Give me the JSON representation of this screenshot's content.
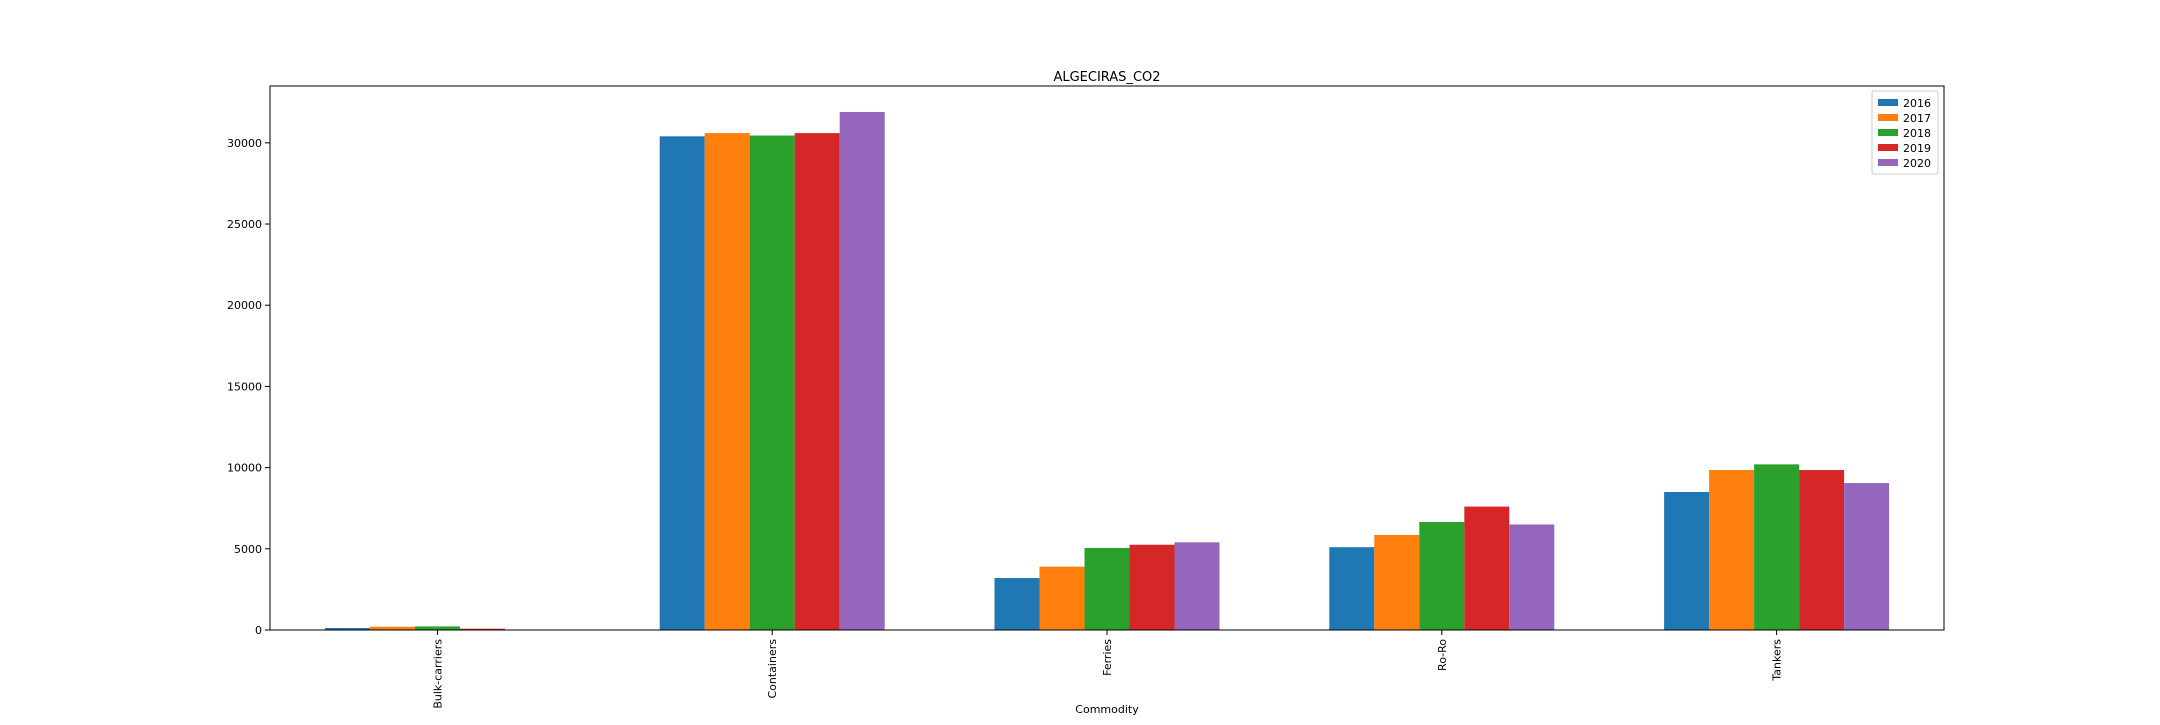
{
  "chart_data": {
    "type": "bar",
    "title": "ALGECIRAS_CO2",
    "xlabel": "Commodity",
    "ylabel": "",
    "categories": [
      "Bulk-carriers",
      "Containers",
      "Ferries",
      "Ro-Ro",
      "Tankers"
    ],
    "series": [
      {
        "name": "2016",
        "color": "#1f77b4",
        "values": [
          120,
          30400,
          3200,
          5100,
          8500
        ]
      },
      {
        "name": "2017",
        "color": "#ff7f0e",
        "values": [
          200,
          30600,
          3900,
          5850,
          9850
        ]
      },
      {
        "name": "2018",
        "color": "#2ca02c",
        "values": [
          220,
          30450,
          5050,
          6650,
          10200
        ]
      },
      {
        "name": "2019",
        "color": "#d62728",
        "values": [
          80,
          30600,
          5250,
          7600,
          9850
        ]
      },
      {
        "name": "2020",
        "color": "#9467bd",
        "values": [
          20,
          31900,
          5400,
          6500,
          9050
        ]
      }
    ],
    "ylim": [
      0,
      33500
    ],
    "yticks": [
      0,
      5000,
      10000,
      15000,
      20000,
      25000,
      30000
    ],
    "grid": false,
    "legend_position": "top-right"
  }
}
